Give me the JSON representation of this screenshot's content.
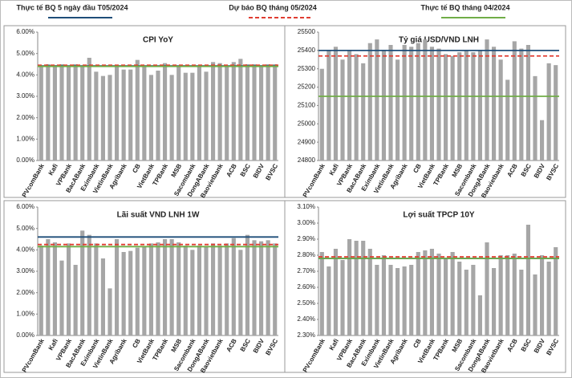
{
  "legend": [
    {
      "name": "Thực tế BQ 5 ngày đầu T05/2024",
      "color": "#1f4e79",
      "dash": false
    },
    {
      "name": "Dự báo BQ tháng 05/2024",
      "color": "#e03c31",
      "dash": true
    },
    {
      "name": "Thực tế BQ tháng 04/2024",
      "color": "#70ad47",
      "dash": false
    }
  ],
  "chart_data": [
    {
      "type": "bar",
      "title": "CPI YoY",
      "color": "#a6a6a6",
      "categories": [
        "PVcomBank",
        null,
        "Kafi",
        null,
        "VPBank",
        null,
        "BacABank",
        null,
        "Eximbank",
        null,
        "VietinBank",
        null,
        "Agribank",
        null,
        "CB",
        null,
        "VietBank",
        null,
        "TPBank",
        null,
        "MSB",
        null,
        "Sacombank",
        null,
        "DongABank",
        null,
        "Baovietbank",
        null,
        "ACB",
        null,
        "BSC",
        null,
        "BIDV",
        null,
        "BVSC"
      ],
      "values": [
        4.4,
        4.5,
        4.45,
        4.5,
        4.4,
        4.5,
        4.4,
        4.8,
        4.15,
        3.95,
        4.0,
        4.4,
        4.25,
        4.25,
        4.7,
        4.4,
        4.0,
        4.2,
        4.55,
        4.0,
        4.4,
        4.1,
        4.1,
        4.4,
        4.15,
        4.6,
        4.55,
        4.4,
        4.6,
        4.75,
        4.5,
        4.5,
        4.45,
        4.5,
        4.5
      ],
      "reference_values": [
        4.42,
        4.45,
        4.4
      ],
      "ylim": [
        0,
        6
      ],
      "yticks": [
        {
          "value": 0,
          "label": "0.00%"
        },
        {
          "value": 1,
          "label": "1.00%"
        },
        {
          "value": 2,
          "label": "2.00%"
        },
        {
          "value": 3,
          "label": "3.00%"
        },
        {
          "value": 4,
          "label": "4.00%"
        },
        {
          "value": 5,
          "label": "5.00%"
        },
        {
          "value": 6,
          "label": "6.00%"
        }
      ]
    },
    {
      "type": "bar",
      "title": "Tỷ giá USD/VND LNH",
      "color": "#a6a6a6",
      "categories": [
        "PVcomBank",
        null,
        "Kafi",
        null,
        "VPBank",
        null,
        "BacABank",
        null,
        "Eximbank",
        null,
        "VietinBank",
        null,
        "Agribank",
        null,
        "CB",
        null,
        "VietBank",
        null,
        "TPBank",
        null,
        "MSB",
        null,
        "Sacombank",
        null,
        "DongABank",
        null,
        "Baovietbank",
        null,
        "ACB",
        null,
        "BSC",
        null,
        "BIDV",
        null,
        "BVSC"
      ],
      "values": [
        25300,
        25400,
        25420,
        25350,
        25400,
        25380,
        25330,
        25440,
        25460,
        25400,
        25430,
        25350,
        25430,
        25420,
        25440,
        25460,
        25420,
        25410,
        25380,
        25370,
        25390,
        25400,
        25390,
        25400,
        25460,
        25420,
        25350,
        25240,
        25450,
        25410,
        25430,
        25260,
        25020,
        25330,
        25320
      ],
      "reference_values": [
        25400,
        25370,
        25150
      ],
      "ylim": [
        24800,
        25500
      ],
      "yticks": [
        24800,
        24900,
        25000,
        25100,
        25200,
        25300,
        25400,
        25500
      ]
    },
    {
      "type": "bar",
      "title": "Lãi suất VND LNH 1W",
      "color": "#a6a6a6",
      "categories": [
        "PVcomBank",
        null,
        "Kafi",
        null,
        "VPBank",
        null,
        "BacABank",
        null,
        "Eximbank",
        null,
        "VietinBank",
        null,
        "Agribank",
        null,
        "CB",
        null,
        "VietBank",
        null,
        "TPBank",
        null,
        "MSB",
        null,
        "Sacombank",
        null,
        "DongABank",
        null,
        "Baovietbank",
        null,
        "ACB",
        null,
        "BSC",
        null,
        "BIDV",
        null,
        "BVSC"
      ],
      "values": [
        4.2,
        4.5,
        4.35,
        3.5,
        4.3,
        3.3,
        4.9,
        4.7,
        4.3,
        3.6,
        2.2,
        4.5,
        3.9,
        3.95,
        4.1,
        4.15,
        4.3,
        4.35,
        4.5,
        4.5,
        4.35,
        4.2,
        4.0,
        4.2,
        4.15,
        4.3,
        4.2,
        4.3,
        4.55,
        4.0,
        4.7,
        4.45,
        4.4,
        4.45,
        4.3
      ],
      "reference_values": [
        4.6,
        4.25,
        4.15
      ],
      "ylim": [
        0,
        6
      ],
      "yticks": [
        {
          "value": 0,
          "label": "0.00%"
        },
        {
          "value": 1,
          "label": "1.00%"
        },
        {
          "value": 2,
          "label": "2.00%"
        },
        {
          "value": 3,
          "label": "3.00%"
        },
        {
          "value": 4,
          "label": "4.00%"
        },
        {
          "value": 5,
          "label": "5.00%"
        },
        {
          "value": 6,
          "label": "6.00%"
        }
      ]
    },
    {
      "type": "bar",
      "title": "Lợi suất TPCP 10Y",
      "color": "#a6a6a6",
      "categories": [
        "PVcomBank",
        null,
        "Kafi",
        null,
        "VPBank",
        null,
        "BacABank",
        null,
        "Eximbank",
        null,
        "VietinBank",
        null,
        "Agribank",
        null,
        "CB",
        null,
        "VietBank",
        null,
        "TPBank",
        null,
        "MSB",
        null,
        "Sacombank",
        null,
        "DongABank",
        null,
        "Baovietbank",
        null,
        "ACB",
        null,
        "BSC",
        null,
        "BIDV",
        null,
        "BVSC"
      ],
      "values": [
        2.82,
        2.73,
        2.84,
        2.77,
        2.9,
        2.89,
        2.89,
        2.84,
        2.74,
        2.8,
        2.74,
        2.72,
        2.73,
        2.74,
        2.82,
        2.83,
        2.84,
        2.81,
        2.78,
        2.82,
        2.76,
        2.71,
        2.74,
        2.55,
        2.88,
        2.72,
        2.8,
        2.8,
        2.81,
        2.71,
        2.99,
        2.68,
        2.8,
        2.76,
        2.85
      ],
      "reference_values": [
        2.78,
        2.79,
        2.78
      ],
      "ylim": [
        2.3,
        3.1
      ],
      "yticks": [
        {
          "value": 2.3,
          "label": "2.30%"
        },
        {
          "value": 2.4,
          "label": "2.40%"
        },
        {
          "value": 2.5,
          "label": "2.50%"
        },
        {
          "value": 2.6,
          "label": "2.60%"
        },
        {
          "value": 2.7,
          "label": "2.70%"
        },
        {
          "value": 2.8,
          "label": "2.80%"
        },
        {
          "value": 2.9,
          "label": "2.90%"
        },
        {
          "value": 3.0,
          "label": "3.00%"
        },
        {
          "value": 3.1,
          "label": "3.10%"
        }
      ]
    }
  ]
}
